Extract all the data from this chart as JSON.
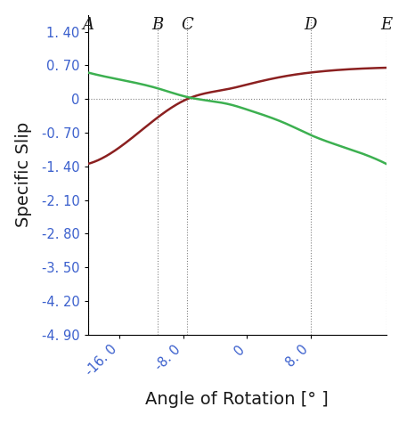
{
  "x_min": -20.0,
  "x_max": 17.5,
  "y_min": -4.9,
  "y_max": 1.75,
  "x_ticks": [
    -16.0,
    -8.0,
    0,
    8.0
  ],
  "x_tick_labels": [
    "-16. 0",
    "-8. 0",
    "0",
    "8. 0"
  ],
  "y_ticks": [
    1.4,
    0.7,
    0,
    -0.7,
    -1.4,
    -2.1,
    -2.8,
    -3.5,
    -4.2,
    -4.9
  ],
  "y_tick_labels": [
    "1. 40",
    "0. 70",
    "0",
    "-0. 70",
    "-1. 40",
    "-2. 10",
    "-2. 80",
    "-3. 50",
    "-4. 20",
    "-4. 90"
  ],
  "xlabel": "Angle of Rotation [° ]",
  "ylabel": "Specific Slip",
  "vlines": {
    "A": -20.0,
    "B": -11.2,
    "C": -7.5,
    "D": 8.0,
    "E": 17.5
  },
  "hline_y": 0,
  "red_line_color": "#8B2020",
  "green_line_color": "#3CB050",
  "background_color": "#ffffff",
  "tick_label_color": "#3A5FCD",
  "axis_label_color": "#1a1a1a",
  "vline_label_color": "#1a1a1a",
  "label_fontsize": 14,
  "tick_fontsize": 10.5,
  "vline_label_fontsize": 13
}
